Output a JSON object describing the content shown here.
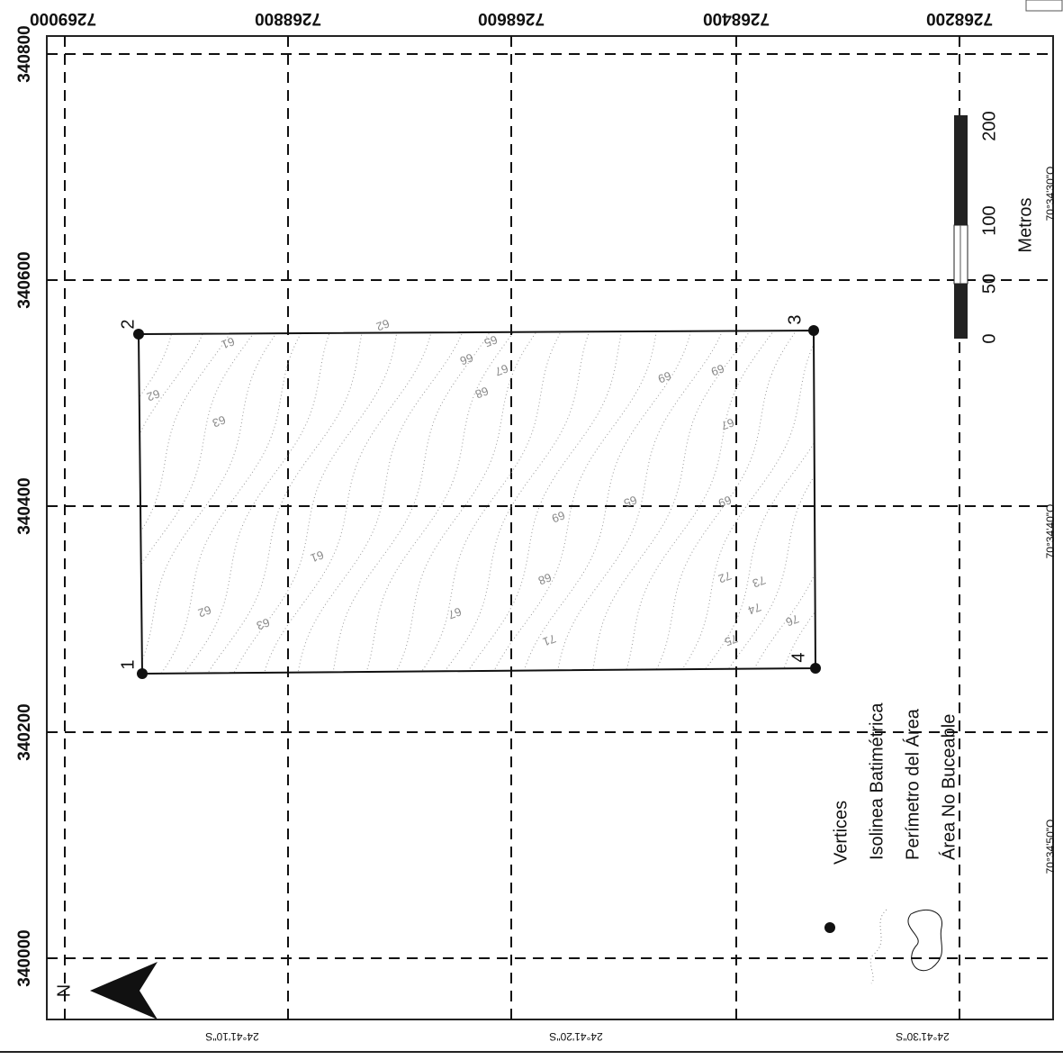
{
  "grid": {
    "northing_labels": [
      "7269000",
      "7268800",
      "7268600",
      "7268400",
      "7268200"
    ],
    "easting_labels": [
      "340800",
      "340600",
      "340400",
      "340200",
      "340000"
    ],
    "latitude_labels": [
      "24°41'10\"S",
      "24°41'20\"S",
      "24°41'30\"S"
    ],
    "longitude_labels": [
      "70°34'30\"O",
      "70°34'40\"O",
      "70°34'50\"O"
    ]
  },
  "vertices": [
    "1",
    "2",
    "3",
    "4"
  ],
  "contour_labels": [
    "61",
    "62",
    "62",
    "63",
    "66",
    "65",
    "67",
    "68",
    "69",
    "69",
    "67",
    "61",
    "62",
    "63",
    "67",
    "68",
    "69",
    "65",
    "69",
    "71",
    "72",
    "73",
    "74",
    "75",
    "76"
  ],
  "scale_bar": {
    "labels": [
      "0",
      "50",
      "100",
      "200"
    ],
    "unit": "Metros"
  },
  "legend": [
    "Vertices",
    "Isolinea Batimétrica",
    "Perímetro del Área",
    "Área No Buceable"
  ],
  "north": "N"
}
